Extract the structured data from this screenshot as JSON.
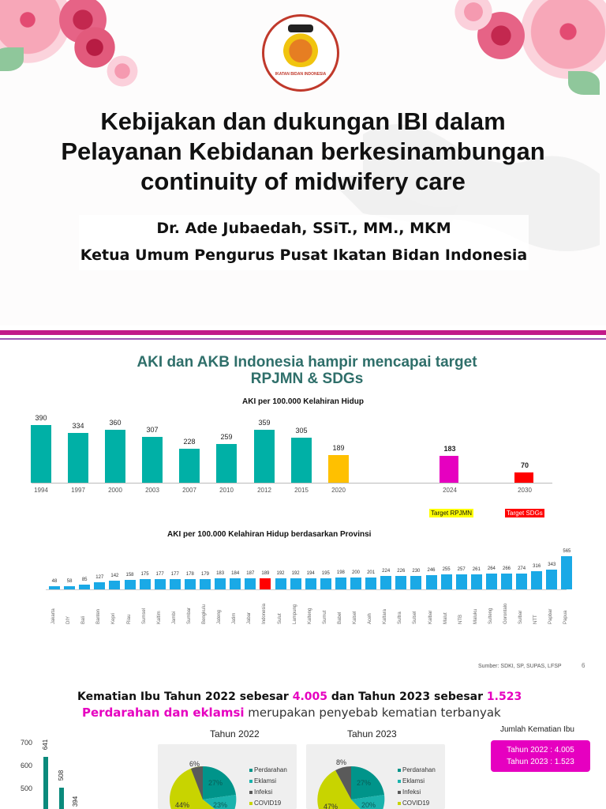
{
  "slide1": {
    "logo_text": "IKATAN BIDAN INDONESIA",
    "title_lines": [
      "Kebijakan dan dukungan IBI dalam",
      "Pelayanan Kebidanan berkesinambungan",
      "continuity of midwifery care"
    ],
    "presenter": "Dr. Ade Jubaedah, SSiT., MM., MKM",
    "position": "Ketua Umum Pengurus Pusat Ikatan Bidan Indonesia"
  },
  "slide2": {
    "title_line1": "AKI dan AKB Indonesia hampir mencapai target",
    "title_line2": "RPJMN & SDGs",
    "source": "Sumber: SDKI, SP, SUPAS, LFSP",
    "page_number": "6",
    "legend_rpjmn": "Target RPJMN",
    "legend_sdgs": "Target SDGs"
  },
  "slide3": {
    "head_prefix": "Kematian Ibu Tahun 2022 sebesar ",
    "head_v1": "4.005",
    "head_mid": " dan Tahun   2023 sebesar ",
    "head_v2": "1.523",
    "sub_pink": "Perdarahan dan eklamsi",
    "sub_rest": " merupakan penyebab kematian terbanyak",
    "jumlah_label": "Jumlah Kematian Ibu",
    "box_line1": "Tahun 2022 : 4.005",
    "box_line2": "Tahun 2023 : 1.523",
    "pie1_title": "Tahun 2022",
    "pie2_title": "Tahun 2023",
    "legend": [
      "Perdarahan",
      "Eklamsi",
      "Infeksi",
      "COVID19"
    ]
  },
  "chart_data": [
    {
      "type": "bar",
      "title": "AKI per 100.000 Kelahiran Hidup",
      "categories": [
        "1994",
        "1997",
        "2000",
        "2003",
        "2007",
        "2010",
        "2012",
        "2015",
        "2020",
        "2024",
        "2030"
      ],
      "values": [
        390,
        334,
        360,
        307,
        228,
        259,
        359,
        305,
        189,
        183,
        70
      ],
      "colors": [
        "#00b0a6",
        "#00b0a6",
        "#00b0a6",
        "#00b0a6",
        "#00b0a6",
        "#00b0a6",
        "#00b0a6",
        "#00b0a6",
        "#ffc000",
        "#e600c0",
        "#ff0000"
      ],
      "ylim": [
        0,
        400
      ]
    },
    {
      "type": "bar",
      "title": "AKI per 100.000 Kelahiran Hidup berdasarkan Provinsi",
      "categories": [
        "Jakarta",
        "DIY",
        "Bali",
        "Banten",
        "Kepri",
        "Riau",
        "Sumsel",
        "Kaltim",
        "Jambi",
        "Sumbar",
        "Bengkulu",
        "Jateng",
        "Jatim",
        "Jabar",
        "Indonesia",
        "Sulut",
        "Lampung",
        "Kalteng",
        "Sumut",
        "Babel",
        "Kalsel",
        "Aceh",
        "Kaltara",
        "Sultra",
        "Sulsel",
        "Kalbar",
        "Malut",
        "NTB",
        "Maluku",
        "Sulteng",
        "Gorontalo",
        "Sulbar",
        "NTT",
        "Papbar",
        "Papua"
      ],
      "values": [
        48,
        58,
        85,
        127,
        142,
        158,
        175,
        177,
        177,
        178,
        179,
        183,
        184,
        187,
        189,
        192,
        192,
        194,
        195,
        198,
        200,
        201,
        224,
        226,
        230,
        246,
        255,
        257,
        261,
        264,
        266,
        274,
        316,
        343,
        565
      ],
      "highlight": "Indonesia",
      "bar_color": "#1aa9e6",
      "highlight_color": "#ff0000"
    },
    {
      "type": "bar",
      "title": "",
      "tick_labels": [
        "700",
        "600",
        "500"
      ],
      "values": [
        641,
        508,
        394
      ],
      "ylim": [
        400,
        700
      ]
    },
    {
      "type": "pie",
      "title": "Tahun 2022",
      "labels": [
        "Perdarahan",
        "Eklamsi",
        "Infeksi",
        "COVID19"
      ],
      "visible_percent_labels": [
        "6%",
        "27%",
        "23%",
        "44%"
      ],
      "colors": [
        "#00948a",
        "#1ab3ad",
        "#5a5a5a",
        "#c8d400"
      ]
    },
    {
      "type": "pie",
      "title": "Tahun 2023",
      "labels": [
        "Perdarahan",
        "Eklamsi",
        "Infeksi",
        "COVID19"
      ],
      "visible_percent_labels": [
        "8%",
        "27%",
        "20%",
        "47%"
      ],
      "colors": [
        "#00948a",
        "#1ab3ad",
        "#5a5a5a",
        "#c8d400"
      ]
    }
  ]
}
